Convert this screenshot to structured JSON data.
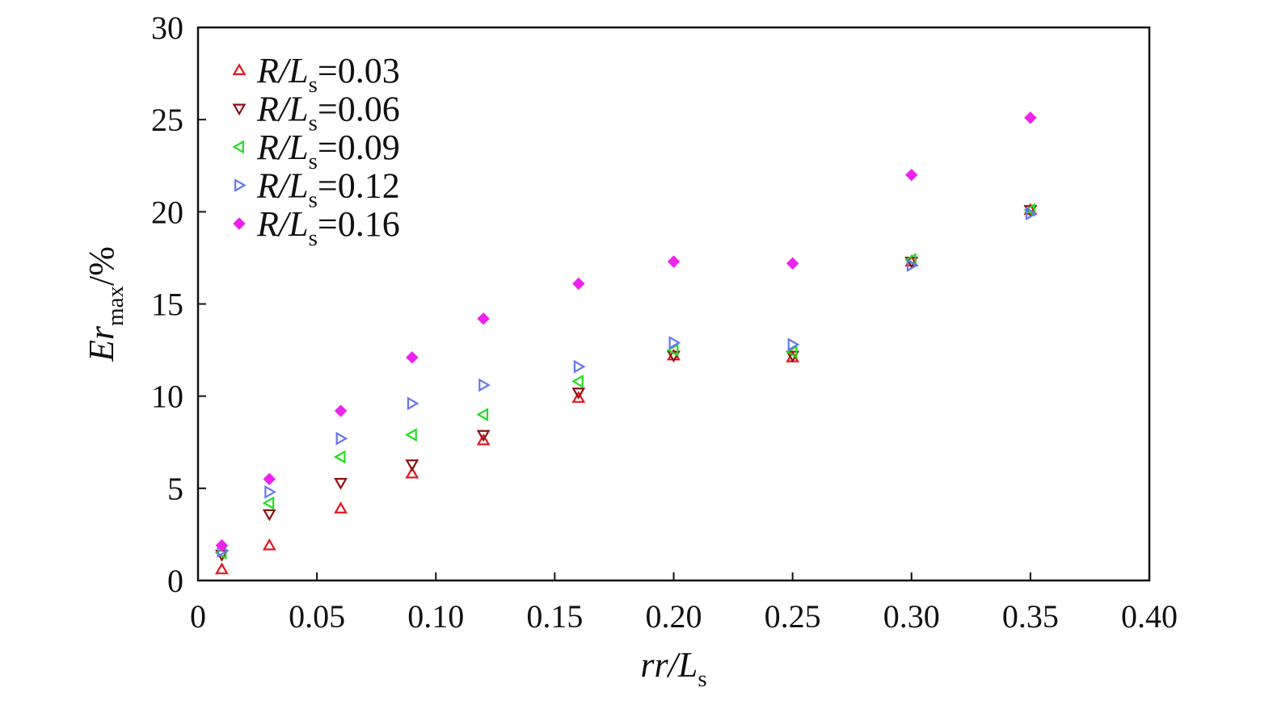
{
  "chart_data": {
    "type": "scatter",
    "title": "",
    "xlabel": {
      "main": "rr/L",
      "sub": "s"
    },
    "ylabel": {
      "main": "Er",
      "sub": "max",
      "suffix": "/%"
    },
    "xlim": [
      0,
      0.4
    ],
    "ylim": [
      0,
      30
    ],
    "x_ticks": [
      0,
      0.05,
      0.1,
      0.15,
      0.2,
      0.25,
      0.3,
      0.35,
      0.4
    ],
    "x_tick_labels": [
      "0",
      "0.05",
      "0.10",
      "0.15",
      "0.20",
      "0.25",
      "0.30",
      "0.35",
      "0.40"
    ],
    "y_ticks": [
      0,
      5,
      10,
      15,
      20,
      25,
      30
    ],
    "y_tick_labels": [
      "0",
      "5",
      "10",
      "15",
      "20",
      "25",
      "30"
    ],
    "legend_position": "top-left",
    "x": [
      0.01,
      0.03,
      0.06,
      0.09,
      0.12,
      0.16,
      0.2,
      0.25,
      0.3,
      0.35
    ],
    "series": [
      {
        "name": "R/Ls=0.03",
        "label": {
          "a": "R/L",
          "sub": "s",
          "b": "=0.03"
        },
        "marker": "triangle-up",
        "color": "#e8141c",
        "fill": "none",
        "values": [
          0.6,
          1.9,
          3.9,
          5.8,
          7.6,
          9.9,
          12.2,
          12.1,
          17.3,
          20.1
        ]
      },
      {
        "name": "R/Ls=0.06",
        "label": {
          "a": "R/L",
          "sub": "s",
          "b": "=0.06"
        },
        "marker": "triangle-down",
        "color": "#8b1010",
        "fill": "none",
        "values": [
          1.4,
          3.6,
          5.3,
          6.3,
          7.9,
          10.2,
          12.2,
          12.2,
          17.3,
          20.1
        ]
      },
      {
        "name": "R/Ls=0.09",
        "label": {
          "a": "R/L",
          "sub": "s",
          "b": "=0.09"
        },
        "marker": "triangle-left",
        "color": "#22dd22",
        "fill": "none",
        "values": [
          1.5,
          4.2,
          6.7,
          7.9,
          9.0,
          10.8,
          12.5,
          12.4,
          17.4,
          20.1
        ]
      },
      {
        "name": "R/Ls=0.12",
        "label": {
          "a": "R/L",
          "sub": "s",
          "b": "=0.12"
        },
        "marker": "triangle-right",
        "color": "#6677ee",
        "fill": "none",
        "values": [
          1.6,
          4.8,
          7.7,
          9.6,
          10.6,
          11.6,
          12.9,
          12.8,
          17.1,
          19.9
        ]
      },
      {
        "name": "R/Ls=0.16",
        "label": {
          "a": "R/L",
          "sub": "s",
          "b": "=0.16"
        },
        "marker": "diamond",
        "color": "#ee22ee",
        "fill": "#ee22ee",
        "values": [
          1.9,
          5.5,
          9.2,
          12.1,
          14.2,
          16.1,
          17.3,
          17.2,
          22.0,
          25.1
        ]
      }
    ]
  }
}
